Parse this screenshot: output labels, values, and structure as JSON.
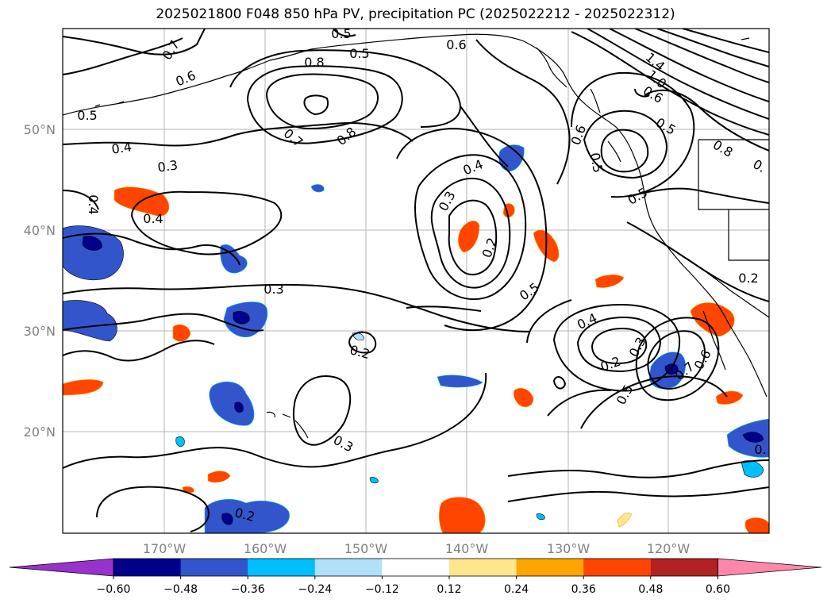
{
  "title": "2025021800 F048 850 hPa PV, precipitation PC (2025022212 - 2025022312)",
  "axes": {
    "lat_ticks": [
      "50°N",
      "40°N",
      "30°N",
      "20°N"
    ],
    "lon_ticks": [
      "170°W",
      "160°W",
      "150°W",
      "140°W",
      "130°W",
      "120°W"
    ]
  },
  "colorbar": {
    "ticks": [
      "−0.60",
      "−0.48",
      "−0.36",
      "−0.24",
      "−0.12",
      "0.12",
      "0.24",
      "0.36",
      "0.48",
      "0.60"
    ],
    "colors": [
      "#9932CC",
      "#00008B",
      "#3355CC",
      "#00BFFF",
      "#B0E0FA",
      "#FFFFFF",
      "#FFE68C",
      "#FFA500",
      "#FF4500",
      "#B22222",
      "#FF88AA"
    ]
  },
  "contour_labels": [
    "0.7",
    "0.6",
    "0.5",
    "0.5",
    "0.6",
    "0.8",
    "0.5",
    "0.4",
    "0.3",
    "0.4",
    "0.4",
    "0.7",
    "0.8",
    "0.4",
    "0.3",
    "0.2",
    "0.5",
    "0.3",
    "0.2",
    "0.3",
    "0.2",
    "0.4",
    "0.2",
    "0.3",
    "0.5",
    "0.7",
    "0.6",
    "0.5",
    "1.4",
    "1.0",
    "0.6",
    "0.5",
    "0.8",
    "0.6",
    "0.5",
    "0.2",
    "0.",
    "0."
  ]
}
